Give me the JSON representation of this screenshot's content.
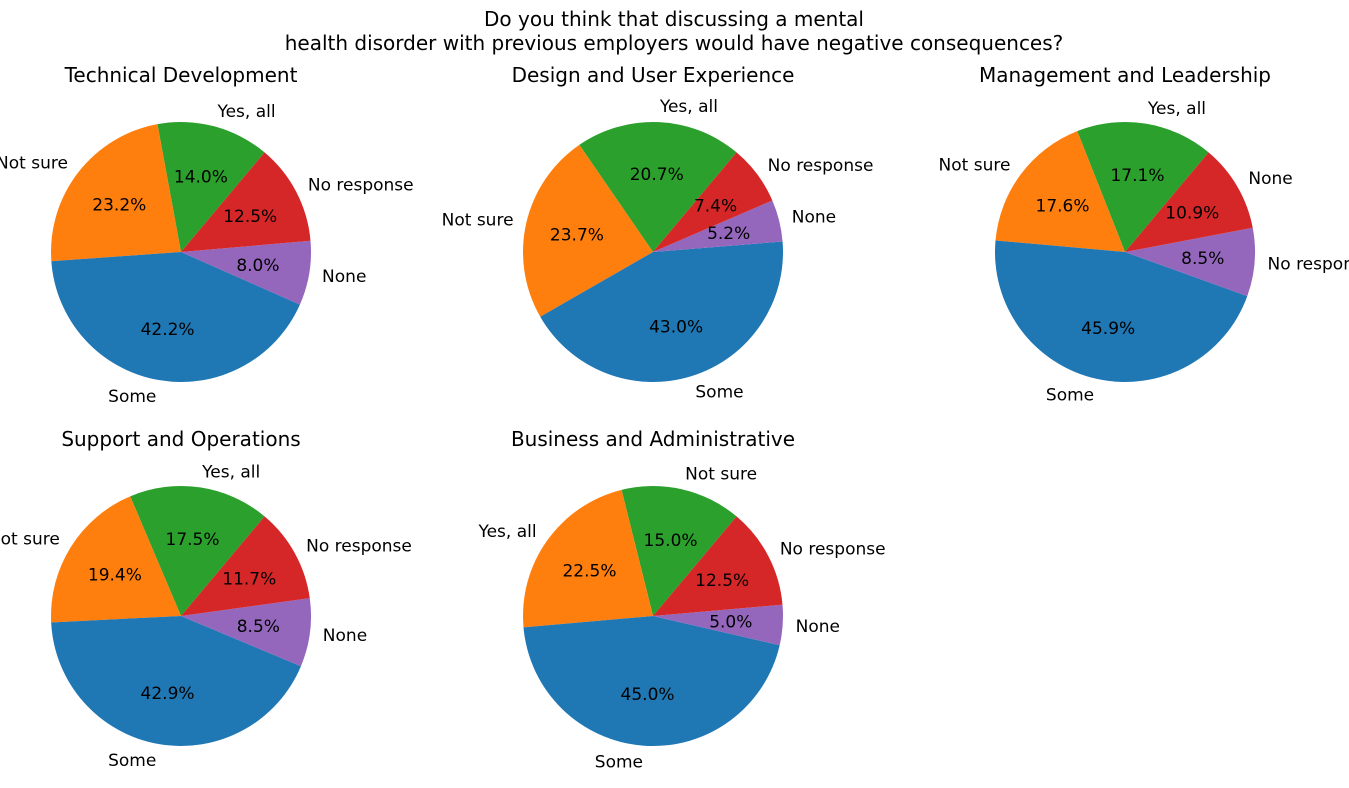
{
  "figure": {
    "title_lines": [
      "Do you think that discussing a mental",
      "health disorder with previous employers would have negative consequences?"
    ]
  },
  "chart_data": [
    {
      "type": "pie",
      "title": "Technical Development",
      "slices": [
        {
          "label": "Yes, all",
          "value": 14.0,
          "pct_label": "14.0%",
          "color": "#2ca02c"
        },
        {
          "label": "Not sure",
          "value": 23.2,
          "pct_label": "23.2%",
          "color": "#ff7f0e"
        },
        {
          "label": "Some",
          "value": 42.2,
          "pct_label": "42.2%",
          "color": "#1f77b4"
        },
        {
          "label": "None",
          "value": 8.0,
          "pct_label": "8.0%",
          "color": "#9467bd"
        },
        {
          "label": "No response",
          "value": 12.5,
          "pct_label": "12.5%",
          "color": "#d62728"
        }
      ]
    },
    {
      "type": "pie",
      "title": "Design and User Experience",
      "slices": [
        {
          "label": "Yes, all",
          "value": 20.7,
          "pct_label": "20.7%",
          "color": "#2ca02c"
        },
        {
          "label": "Not sure",
          "value": 23.7,
          "pct_label": "23.7%",
          "color": "#ff7f0e"
        },
        {
          "label": "Some",
          "value": 43.0,
          "pct_label": "43.0%",
          "color": "#1f77b4"
        },
        {
          "label": "None",
          "value": 5.2,
          "pct_label": "5.2%",
          "color": "#9467bd"
        },
        {
          "label": "No response",
          "value": 7.4,
          "pct_label": "7.4%",
          "color": "#d62728"
        }
      ]
    },
    {
      "type": "pie",
      "title": "Management and Leadership",
      "slices": [
        {
          "label": "Yes, all",
          "value": 17.1,
          "pct_label": "17.1%",
          "color": "#2ca02c"
        },
        {
          "label": "Not sure",
          "value": 17.6,
          "pct_label": "17.6%",
          "color": "#ff7f0e"
        },
        {
          "label": "Some",
          "value": 45.9,
          "pct_label": "45.9%",
          "color": "#1f77b4"
        },
        {
          "label": "No response",
          "value": 8.5,
          "pct_label": "8.5%",
          "color": "#9467bd"
        },
        {
          "label": "None",
          "value": 10.9,
          "pct_label": "10.9%",
          "color": "#d62728"
        }
      ]
    },
    {
      "type": "pie",
      "title": "Support and Operations",
      "slices": [
        {
          "label": "Yes, all",
          "value": 17.5,
          "pct_label": "17.5%",
          "color": "#2ca02c"
        },
        {
          "label": "Not sure",
          "value": 19.4,
          "pct_label": "19.4%",
          "color": "#ff7f0e"
        },
        {
          "label": "Some",
          "value": 42.9,
          "pct_label": "42.9%",
          "color": "#1f77b4"
        },
        {
          "label": "None",
          "value": 8.5,
          "pct_label": "8.5%",
          "color": "#9467bd"
        },
        {
          "label": "No response",
          "value": 11.7,
          "pct_label": "11.7%",
          "color": "#d62728"
        }
      ]
    },
    {
      "type": "pie",
      "title": "Business and Administrative",
      "slices": [
        {
          "label": "Not sure",
          "value": 15.0,
          "pct_label": "15.0%",
          "color": "#2ca02c"
        },
        {
          "label": "Yes, all",
          "value": 22.5,
          "pct_label": "22.5%",
          "color": "#ff7f0e"
        },
        {
          "label": "Some",
          "value": 45.0,
          "pct_label": "45.0%",
          "color": "#1f77b4"
        },
        {
          "label": "None",
          "value": 5.0,
          "pct_label": "5.0%",
          "color": "#9467bd"
        },
        {
          "label": "No response",
          "value": 12.5,
          "pct_label": "12.5%",
          "color": "#d62728"
        }
      ]
    }
  ]
}
